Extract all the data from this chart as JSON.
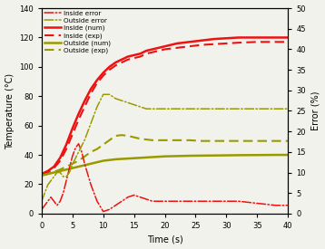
{
  "xlabel": "Time (s)",
  "ylabel_left": "Temperature (°C)",
  "ylabel_right": "Error (%)",
  "xlim": [
    0,
    40
  ],
  "ylim_left": [
    0,
    140
  ],
  "ylim_right": [
    0,
    50
  ],
  "yticks_left": [
    0,
    20,
    40,
    60,
    80,
    100,
    120,
    140
  ],
  "yticks_right": [
    0,
    5,
    10,
    15,
    20,
    25,
    30,
    35,
    40,
    45,
    50
  ],
  "xticks": [
    0,
    5,
    10,
    15,
    20,
    25,
    30,
    35,
    40
  ],
  "inside_num_x": [
    0,
    1,
    2,
    3,
    4,
    5,
    6,
    7,
    8,
    9,
    10,
    11,
    12,
    13,
    14,
    15,
    16,
    17,
    18,
    19,
    20,
    22,
    24,
    26,
    28,
    30,
    32,
    35,
    38,
    40
  ],
  "inside_num_y": [
    27,
    29,
    32,
    38,
    47,
    58,
    68,
    77,
    85,
    91,
    96,
    100,
    103,
    105,
    107,
    108,
    109,
    111,
    112,
    113,
    114,
    116,
    117,
    118,
    119,
    119.5,
    120,
    120,
    120,
    120
  ],
  "inside_exp_x": [
    0,
    1,
    2,
    3,
    4,
    5,
    6,
    7,
    8,
    9,
    10,
    11,
    12,
    13,
    14,
    15,
    16,
    17,
    18,
    19,
    20,
    22,
    24,
    26,
    28,
    30,
    32,
    35,
    38,
    40
  ],
  "inside_exp_y": [
    27,
    28,
    31,
    36,
    44,
    54,
    64,
    73,
    82,
    89,
    94,
    98,
    101,
    103,
    105,
    106,
    107,
    109,
    110,
    111,
    112,
    113,
    114,
    115,
    115.5,
    116,
    116.5,
    117,
    117,
    117
  ],
  "outside_num_x": [
    0,
    1,
    2,
    3,
    4,
    5,
    6,
    7,
    8,
    9,
    10,
    12,
    14,
    16,
    18,
    20,
    22,
    24,
    26,
    28,
    30,
    32,
    35,
    38,
    40
  ],
  "outside_num_y": [
    26,
    27,
    28,
    29,
    30,
    31,
    32,
    33,
    34,
    35,
    36,
    37,
    37.5,
    38,
    38.5,
    39,
    39.2,
    39.4,
    39.5,
    39.6,
    39.7,
    39.8,
    39.9,
    40,
    40
  ],
  "outside_exp_x": [
    0,
    1,
    2,
    3,
    4,
    5,
    6,
    7,
    8,
    9,
    10,
    11,
    12,
    13,
    14,
    15,
    16,
    18,
    20,
    22,
    24,
    26,
    28,
    30,
    32,
    35,
    38,
    40
  ],
  "outside_exp_y": [
    26,
    27,
    28.5,
    30,
    32,
    34,
    36,
    39,
    42,
    44,
    47,
    50,
    53,
    53.5,
    53,
    52,
    51,
    50,
    50,
    50,
    50,
    49.5,
    49.5,
    49.5,
    49.5,
    49.5,
    49.5,
    49.5
  ],
  "inside_error_x": [
    0,
    0.5,
    1,
    1.5,
    2,
    2.5,
    3,
    3.5,
    4,
    4.5,
    5,
    5.5,
    6,
    6.5,
    7,
    8,
    9,
    10,
    11,
    12,
    13,
    14,
    15,
    16,
    17,
    18,
    20,
    22,
    24,
    26,
    28,
    30,
    32,
    35,
    38,
    40
  ],
  "inside_error_y": [
    1,
    2,
    3,
    4,
    3,
    2,
    3,
    5,
    8,
    11,
    14,
    16,
    17,
    15,
    12,
    7,
    3,
    0.5,
    1,
    2,
    3,
    4,
    4.5,
    4,
    3.5,
    3,
    3,
    3,
    3,
    3,
    3,
    3,
    3,
    2.5,
    2,
    2
  ],
  "outside_error_x": [
    0,
    0.5,
    1,
    1.5,
    2,
    2.5,
    3,
    3.5,
    4,
    4.5,
    5,
    6,
    7,
    8,
    9,
    10,
    11,
    12,
    13,
    14,
    15,
    16,
    17,
    18,
    19,
    20,
    22,
    24,
    26,
    28,
    30,
    32,
    35,
    38,
    40
  ],
  "outside_error_y": [
    3,
    5,
    7,
    8,
    9,
    10,
    10,
    9,
    9,
    10,
    12,
    15,
    18,
    22,
    26,
    29,
    29,
    28,
    27.5,
    27,
    26.5,
    26,
    25.5,
    25.5,
    25.5,
    25.5,
    25.5,
    25.5,
    25.5,
    25.5,
    25.5,
    25.5,
    25.5,
    25.5,
    25.5
  ],
  "color_red": "#EE1111",
  "color_olive": "#999900",
  "bg_color": "#F2F2EC"
}
